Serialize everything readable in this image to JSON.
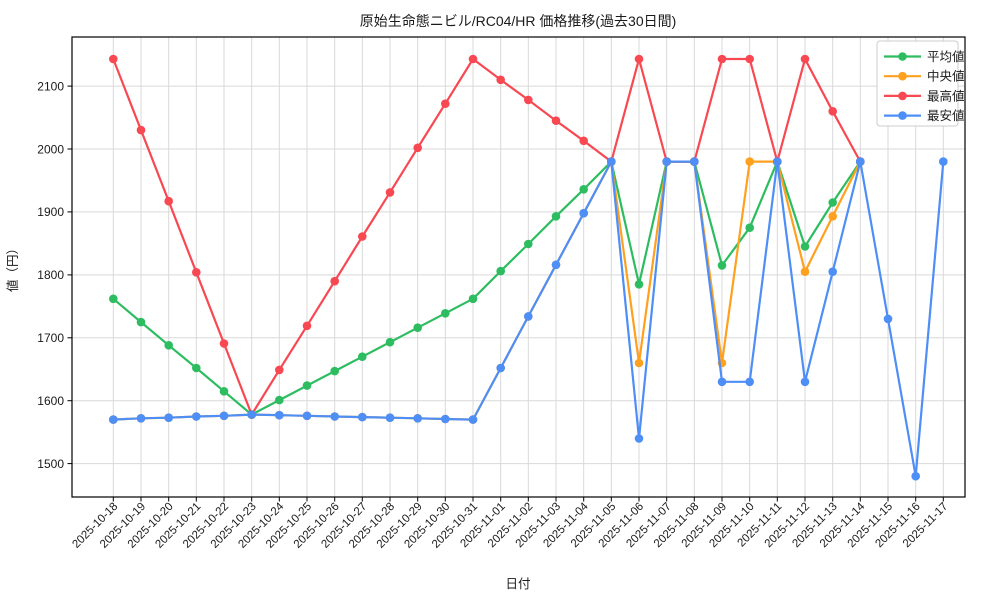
{
  "chart_data": {
    "type": "line",
    "title": "原始生命態ニビル/RC04/HR 価格推移(過去30日間)",
    "xlabel": "日付",
    "ylabel": "値（円）",
    "grid": true,
    "legend_position": "top-right",
    "ylim": [
      1447,
      2178
    ],
    "yticks": [
      1500,
      1600,
      1700,
      1800,
      1900,
      2000,
      2100
    ],
    "x": [
      "2025-10-18",
      "2025-10-19",
      "2025-10-20",
      "2025-10-21",
      "2025-10-22",
      "2025-10-23",
      "2025-10-24",
      "2025-10-25",
      "2025-10-26",
      "2025-10-27",
      "2025-10-28",
      "2025-10-29",
      "2025-10-30",
      "2025-10-31",
      "2025-11-01",
      "2025-11-02",
      "2025-11-03",
      "2025-11-04",
      "2025-11-05",
      "2025-11-06",
      "2025-11-07",
      "2025-11-08",
      "2025-11-09",
      "2025-11-10",
      "2025-11-11",
      "2025-11-12",
      "2025-11-13",
      "2025-11-14",
      "2025-11-15",
      "2025-11-16",
      "2025-11-17"
    ],
    "series": [
      {
        "key": "avg",
        "name": "平均値",
        "color": "#2dbd60",
        "values": [
          1762,
          1725,
          1688,
          1652,
          1615,
          1578,
          1601,
          1624,
          1647,
          1670,
          1693,
          1716,
          1739,
          1762,
          1806,
          1849,
          1893,
          1936,
          1980,
          1785,
          1980,
          1980,
          1815,
          1875,
          1980,
          1845,
          1915,
          1980,
          null,
          null,
          null
        ]
      },
      {
        "key": "median",
        "name": "中央値",
        "color": "#ffa01e",
        "values": [
          1570,
          1572,
          1573,
          1575,
          1576,
          1578,
          1577,
          1576,
          1575,
          1574,
          1573,
          1572,
          1571,
          1570,
          1652,
          1734,
          1816,
          1898,
          1980,
          1660,
          1980,
          1980,
          1660,
          1980,
          1980,
          1805,
          1893,
          1980,
          null,
          null,
          null
        ]
      },
      {
        "key": "max",
        "name": "最高値",
        "color": "#f84852",
        "values": [
          2143,
          2030,
          1917,
          1804,
          1691,
          1578,
          1649,
          1719,
          1790,
          1861,
          1931,
          2002,
          2072,
          2143,
          2110,
          2078,
          2045,
          2013,
          1980,
          2143,
          1980,
          1980,
          2143,
          2143,
          1980,
          2143,
          2060,
          1980,
          null,
          null,
          null
        ]
      },
      {
        "key": "min",
        "name": "最安値",
        "color": "#4d8ef7",
        "values": [
          1570,
          1572,
          1573,
          1575,
          1576,
          1578,
          1577,
          1576,
          1575,
          1574,
          1573,
          1572,
          1571,
          1570,
          1652,
          1734,
          1816,
          1898,
          1980,
          1540,
          1980,
          1980,
          1630,
          1630,
          1980,
          1630,
          1805,
          1980,
          1730,
          1480,
          1980
        ]
      }
    ]
  }
}
